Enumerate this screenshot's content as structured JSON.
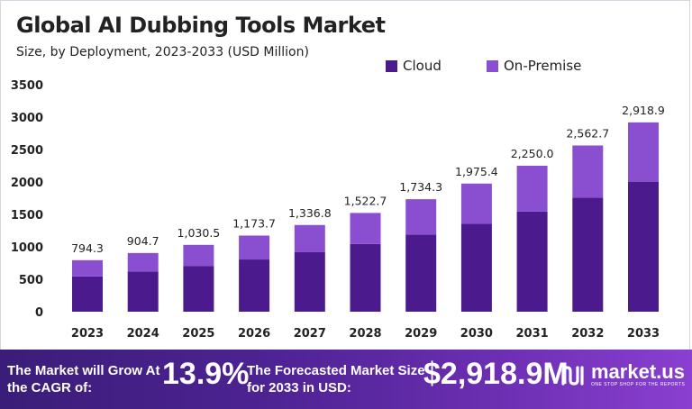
{
  "header": {
    "title": "Global AI Dubbing Tools Market",
    "subtitle": "Size, by Deployment, 2023-2033 (USD Million)"
  },
  "chart_data": {
    "type": "bar",
    "stacked": true,
    "categories": [
      "2023",
      "2024",
      "2025",
      "2026",
      "2027",
      "2028",
      "2029",
      "2030",
      "2031",
      "2032",
      "2033"
    ],
    "series": [
      {
        "name": "Cloud",
        "color": "#4b1a8c",
        "values": [
          544,
          620,
          706,
          805,
          917,
          1044,
          1190,
          1355,
          1545,
          1760,
          2005
        ]
      },
      {
        "name": "On-Premise",
        "color": "#8a4fd0",
        "values": [
          250.3,
          284.7,
          324.5,
          368.7,
          419.8,
          478.7,
          544.3,
          620.4,
          705,
          802.7,
          913.9
        ]
      }
    ],
    "totals_labels": [
      "794.3",
      "904.7",
      "1,030.5",
      "1,173.7",
      "1,336.8",
      "1,522.7",
      "1,734.3",
      "1,975.4",
      "2,250.0",
      "2,562.7",
      "2,918.9"
    ],
    "totals": [
      794.3,
      904.7,
      1030.5,
      1173.7,
      1336.8,
      1522.7,
      1734.3,
      1975.4,
      2250.0,
      2562.7,
      2918.9
    ],
    "yticks": [
      "0",
      "500",
      "1000",
      "1500",
      "2000",
      "2500",
      "3000",
      "3500"
    ],
    "ylim": [
      0,
      3500
    ],
    "legend_position": "top-right",
    "grid": false
  },
  "banner": {
    "growth_text": "The Market will Grow At the CAGR of:",
    "cagr": "13.9%",
    "forecast_text": "The Forecasted Market Size for 2033 in USD:",
    "forecast_value": "$2,918.9M",
    "brand": "market.us",
    "tagline": "ONE STOP SHOP FOR THE REPORTS"
  }
}
